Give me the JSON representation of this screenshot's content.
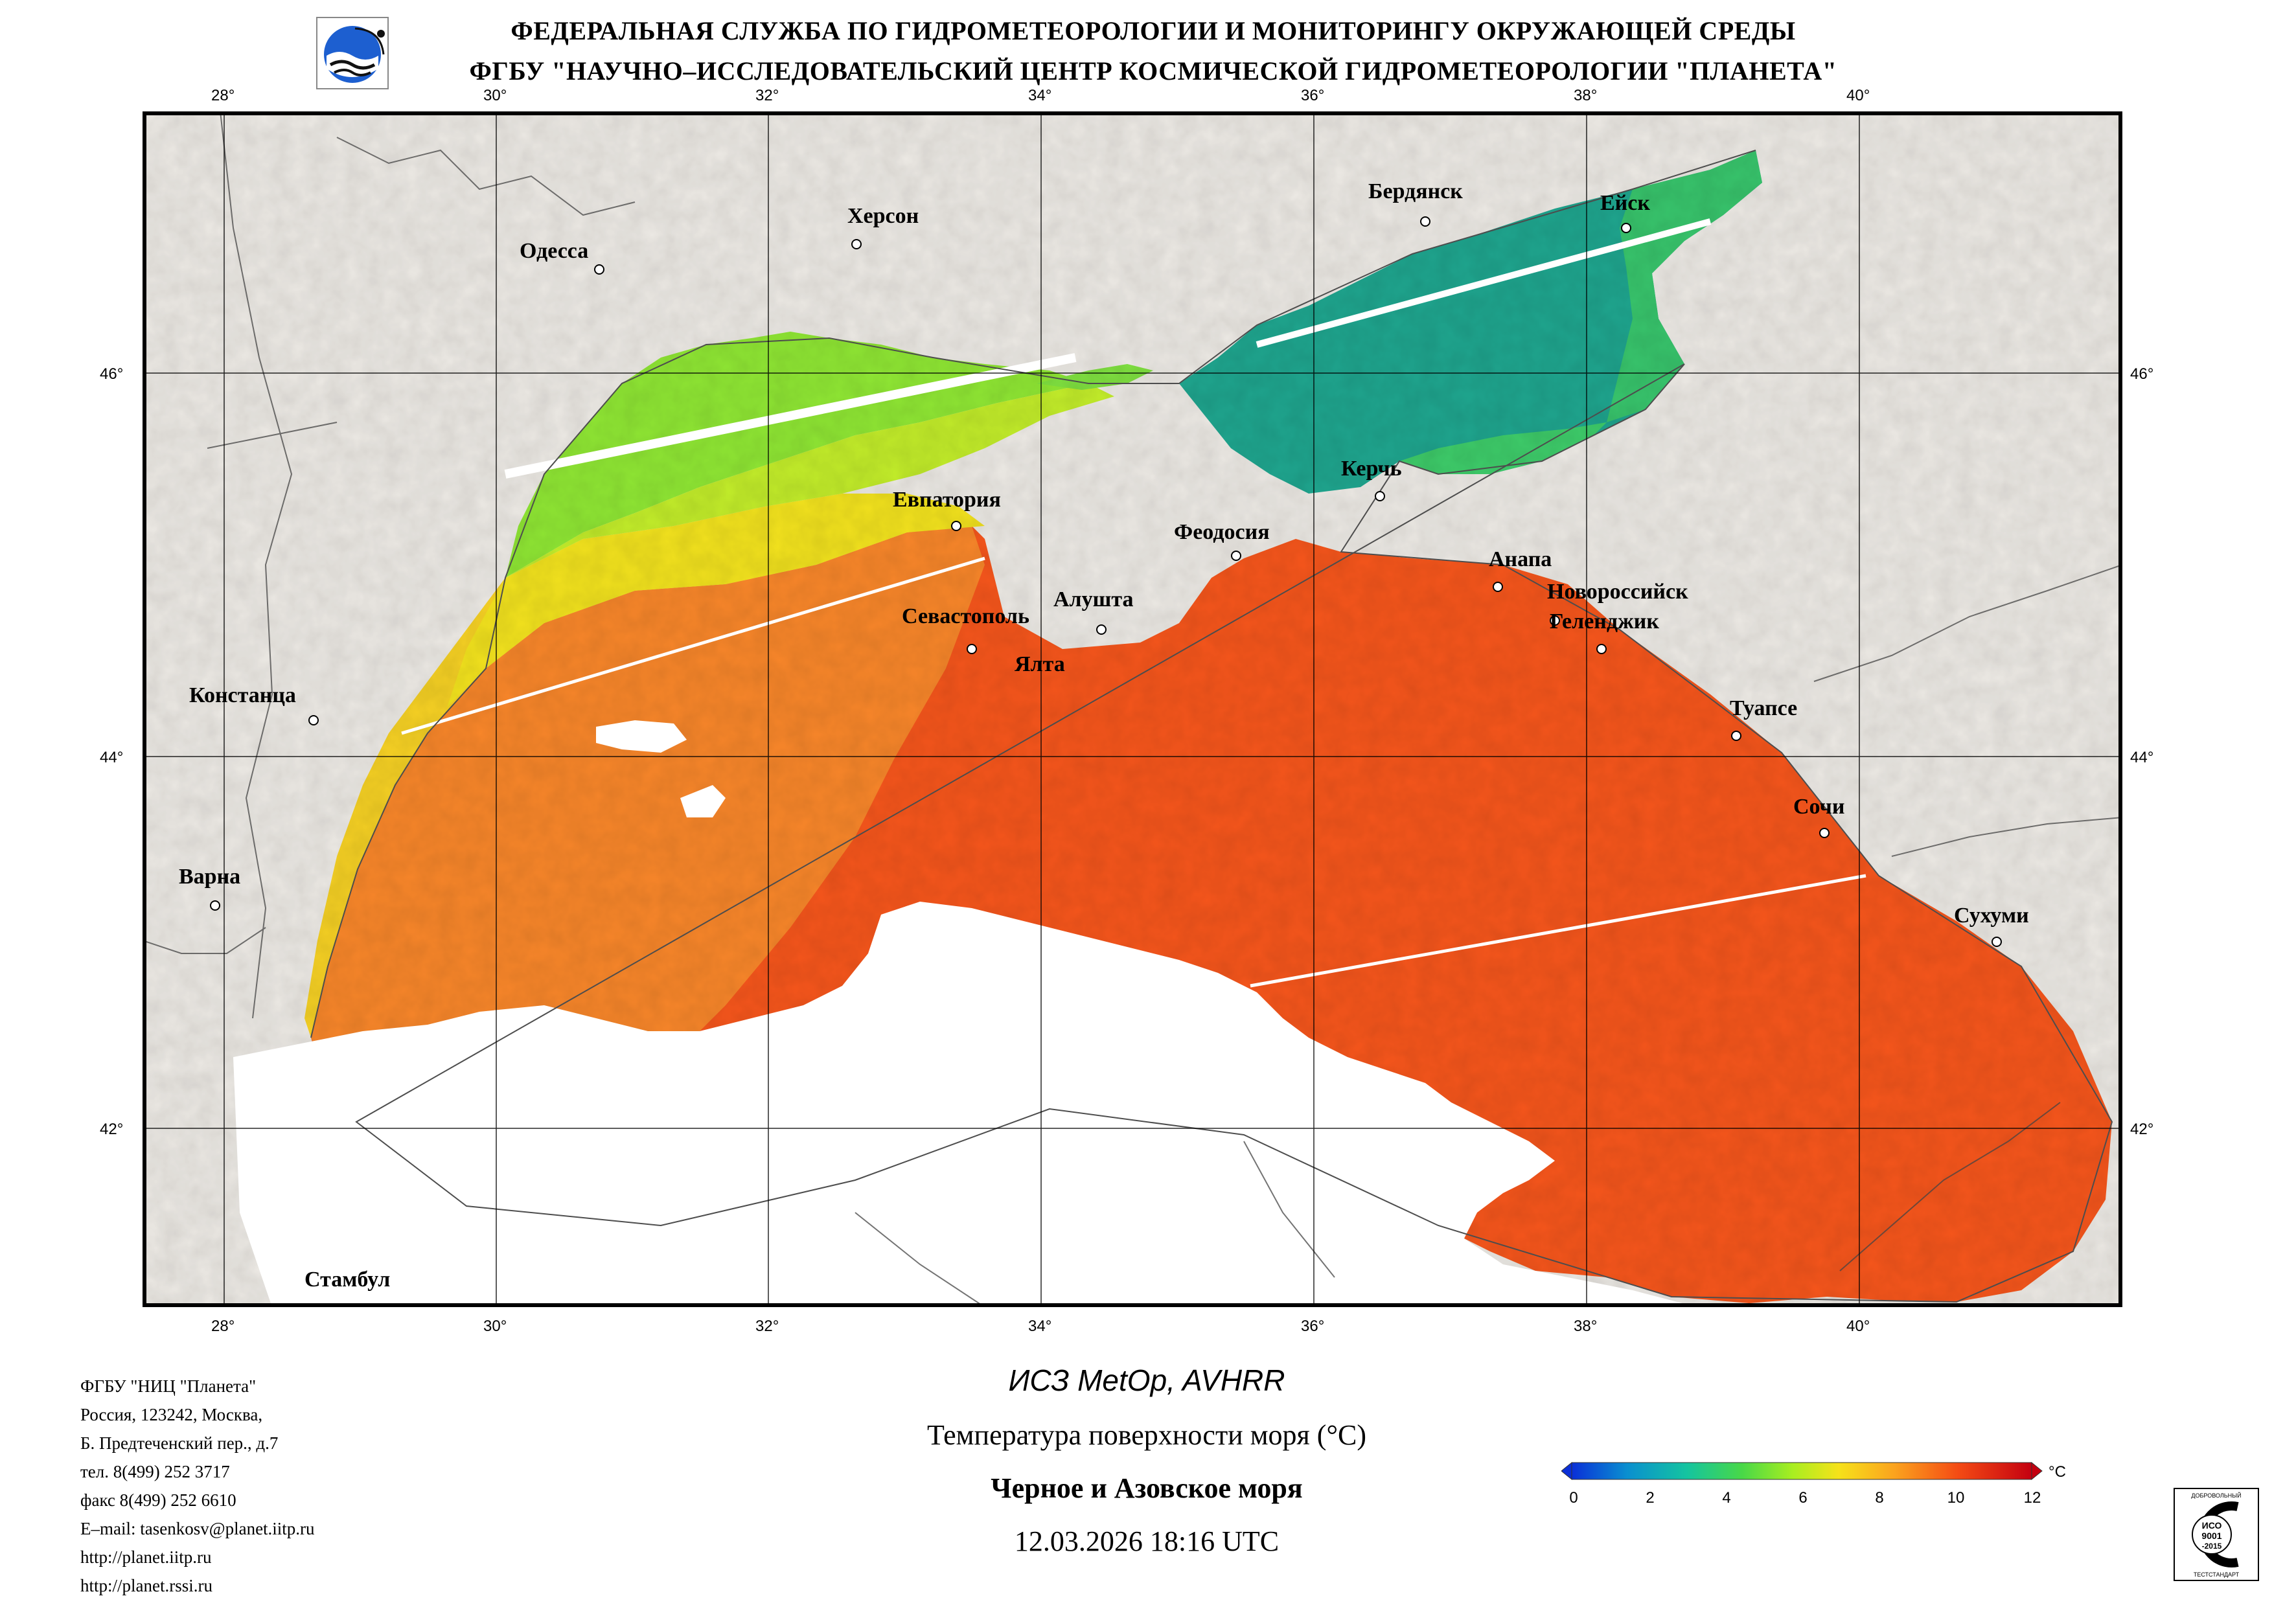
{
  "header": {
    "line1": "ФЕДЕРАЛЬНАЯ СЛУЖБА ПО ГИДРОМЕТЕОРОЛОГИИ И МОНИТОРИНГУ ОКРУЖАЮЩЕЙ СРЕДЫ",
    "line2": "ФГБУ \"НАУЧНО–ИССЛЕДОВАТЕЛЬСКИЙ ЦЕНТР КОСМИЧЕСКОЙ ГИДРОМЕТЕОРОЛОГИИ \"ПЛАНЕТА\""
  },
  "map": {
    "lon_ticks": [
      "28°",
      "30°",
      "32°",
      "34°",
      "36°",
      "38°",
      "40°"
    ],
    "lat_ticks": [
      "46°",
      "44°",
      "42°"
    ],
    "colors": {
      "land": "#ece9e4",
      "frame": "#000000",
      "border_lines": "#555555",
      "cloud": "#ffffff"
    },
    "cities": [
      {
        "name": "Одесса"
      },
      {
        "name": "Херсон"
      },
      {
        "name": "Бердянск"
      },
      {
        "name": "Ейск"
      },
      {
        "name": "Евпатория"
      },
      {
        "name": "Феодосия"
      },
      {
        "name": "Керчь"
      },
      {
        "name": "Анапа"
      },
      {
        "name": "Новороссийск"
      },
      {
        "name": "Геленджик"
      },
      {
        "name": "Алушта"
      },
      {
        "name": "Севастополь"
      },
      {
        "name": "Ялта"
      },
      {
        "name": "Констанца"
      },
      {
        "name": "Туапсе"
      },
      {
        "name": "Сочи"
      },
      {
        "name": "Варна"
      },
      {
        "name": "Сухуми"
      },
      {
        "name": "Стамбул"
      }
    ]
  },
  "footer": {
    "contacts": [
      "ФГБУ \"НИЦ \"Планета\"",
      "Россия, 123242, Москва,",
      "Б. Предтеченский пер., д.7",
      "тел. 8(499) 252 3717",
      "факс 8(499) 252 6610",
      "E–mail: tasenkosv@planet.iitp.ru",
      "http://planet.iitp.ru",
      "http://planet.rssi.ru"
    ],
    "satellite": "ИСЗ MetOp, AVHRR",
    "parameter": "Температура поверхности моря (°C)",
    "region": "Черное и Азовское моря",
    "datetime": "12.03.2026 18:16 UTC"
  },
  "colorbar": {
    "unit": "°C",
    "ticks": [
      "0",
      "2",
      "4",
      "6",
      "8",
      "10",
      "12"
    ],
    "colors": [
      "#0a2fd8",
      "#0aa0c8",
      "#2fd070",
      "#a8ee20",
      "#f6e21a",
      "#fba41e",
      "#f44b14",
      "#e81a10",
      "#c40010"
    ]
  },
  "iso_badge": {
    "top_text": "ДОБРОВОЛЬНЫЙ",
    "center_text_1": "ИСО",
    "center_text_2": "9001",
    "center_text_3": "-2015",
    "bottom_text": "ТЕСТСТАНДАРТ"
  }
}
